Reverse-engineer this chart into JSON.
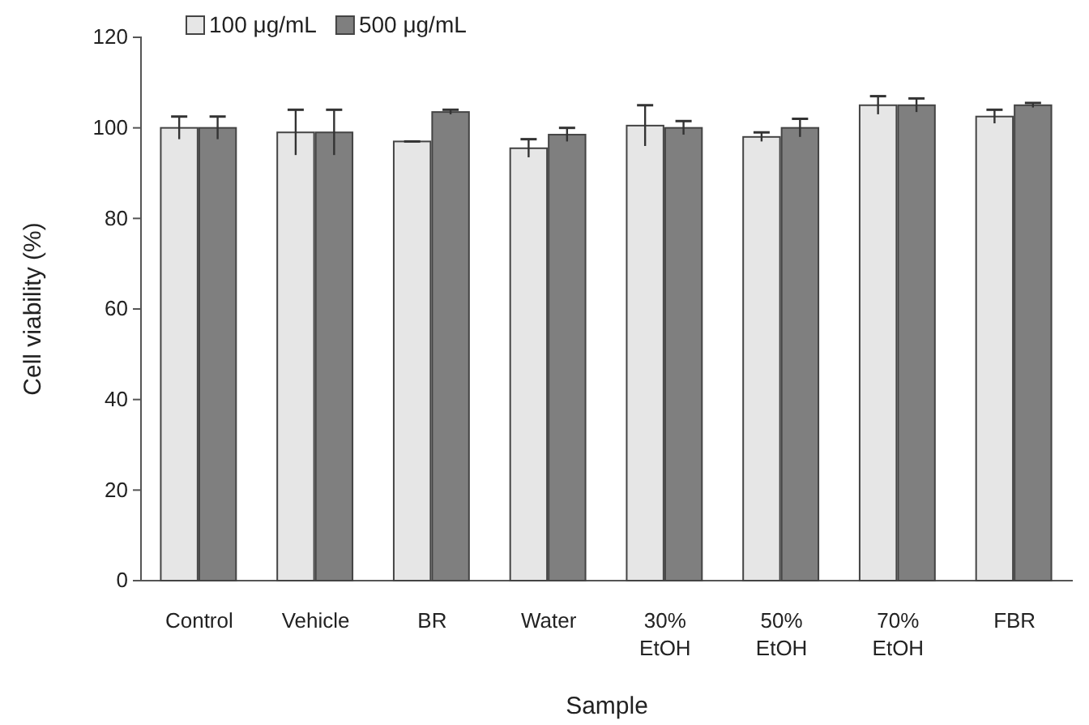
{
  "chart_data": {
    "type": "bar",
    "xlabel": "Sample",
    "ylabel": "Cell viability (%)",
    "categories": [
      "Control",
      "Vehicle",
      "BR",
      "Water",
      "30%\nEtOH",
      "50%\nEtOH",
      "70%\nEtOH",
      "FBR"
    ],
    "series": [
      {
        "name": "100 μg/mL",
        "color": "#e6e6e6",
        "values": [
          100,
          99,
          97,
          95.5,
          100.5,
          98,
          105,
          102.5
        ],
        "errors": [
          2.5,
          5,
          0,
          2,
          4.5,
          1,
          2,
          1.5
        ]
      },
      {
        "name": "500 μg/mL",
        "color": "#7f7f7f",
        "values": [
          100,
          99,
          103.5,
          98.5,
          100,
          100,
          105,
          105
        ],
        "errors": [
          2.5,
          5,
          0.5,
          1.5,
          1.5,
          2,
          1.5,
          0.5
        ]
      }
    ],
    "ylim": [
      0,
      120
    ],
    "yticks": [
      0,
      20,
      40,
      60,
      80,
      100,
      120
    ],
    "grid": false,
    "legend": "top left"
  }
}
